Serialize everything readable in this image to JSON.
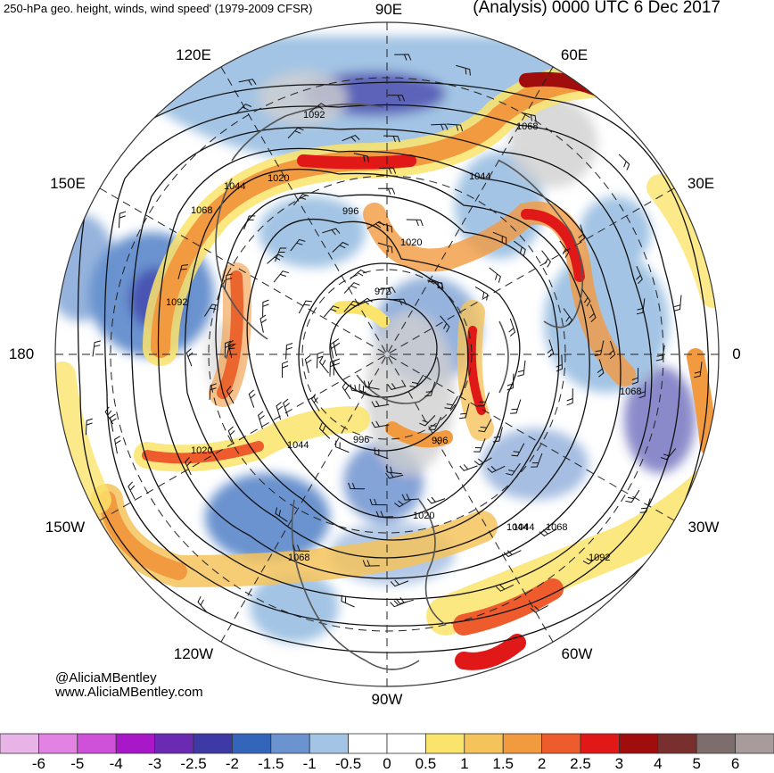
{
  "header": {
    "left_title": "250-hPa geo. height, winds, wind speed' (1979-2009 CFSR)",
    "right_title": "(Analysis) 0000 UTC 6 Dec 2017"
  },
  "longitude_labels": {
    "n90e": "90E",
    "n60e": "60E",
    "n120e": "120E",
    "n150e": "150E",
    "n30e": "30E",
    "n180": "180",
    "n0": "0",
    "n150w": "150W",
    "n30w": "30W",
    "n120w": "120W",
    "n60w": "60W",
    "n90w": "90W"
  },
  "contour_labels": [
    "1092",
    "1068",
    "1044",
    "1020",
    "996",
    "972",
    "1044",
    "1020",
    "996",
    "1068",
    "1092",
    "1044",
    "1068",
    "1044",
    "1020",
    "996",
    "1068",
    "1020",
    "1044",
    "1068",
    "1092"
  ],
  "credits": {
    "handle": "@AliciaMBentley",
    "site": "www.AliciaMBentley.com"
  },
  "colorbar": {
    "ticks": [
      "-6",
      "-5",
      "-4",
      "-3",
      "-2.5",
      "-2",
      "-1.5",
      "-1",
      "-0.5",
      "0",
      "0.5",
      "1",
      "1.5",
      "2",
      "2.5",
      "3",
      "4",
      "5",
      "6"
    ],
    "colors": [
      "#e8b4e8",
      "#e282e2",
      "#cf50d9",
      "#a818c8",
      "#6a2ab2",
      "#3d3aa6",
      "#3366bb",
      "#6a93cf",
      "#a3c4e4",
      "#ffffff",
      "#ffffff",
      "#fbe46b",
      "#f5c35c",
      "#f29a40",
      "#ee5c2e",
      "#e01818",
      "#a00d0d",
      "#7a2f2f",
      "#7d6d6d",
      "#a89b9b"
    ]
  }
}
